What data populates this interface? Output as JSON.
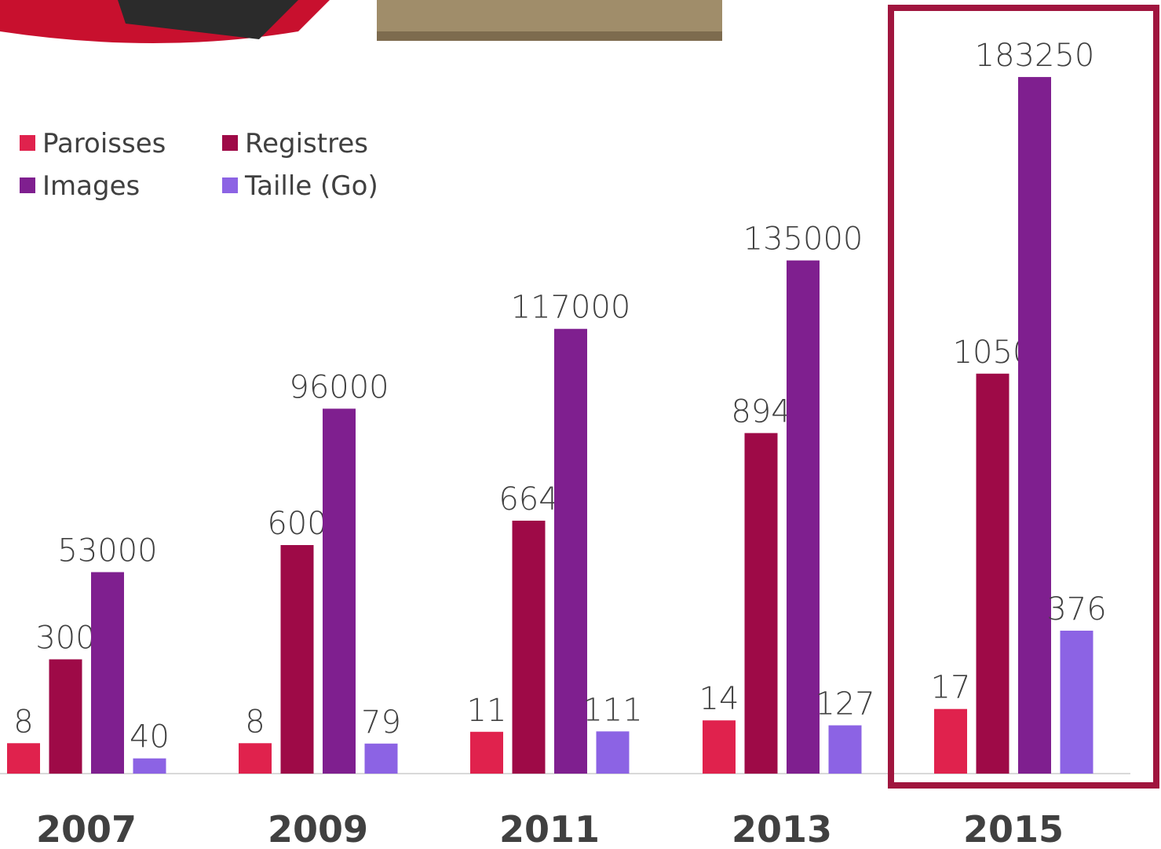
{
  "chart_data": {
    "type": "bar",
    "categories": [
      "2007",
      "2009",
      "2011",
      "2013",
      "2015"
    ],
    "series": [
      {
        "name": "Paroisses",
        "color": "#e0224d",
        "values": [
          8,
          8,
          11,
          14,
          17
        ]
      },
      {
        "name": "Registres",
        "color": "#9e0a47",
        "values": [
          300,
          600,
          664,
          894,
          1050
        ]
      },
      {
        "name": "Images",
        "color": "#7f1f8f",
        "values": [
          53000,
          96000,
          117000,
          135000,
          183250
        ]
      },
      {
        "name": "Taille (Go)",
        "color": "#8c63e4",
        "values": [
          40,
          79,
          111,
          127,
          376
        ]
      }
    ]
  }
}
